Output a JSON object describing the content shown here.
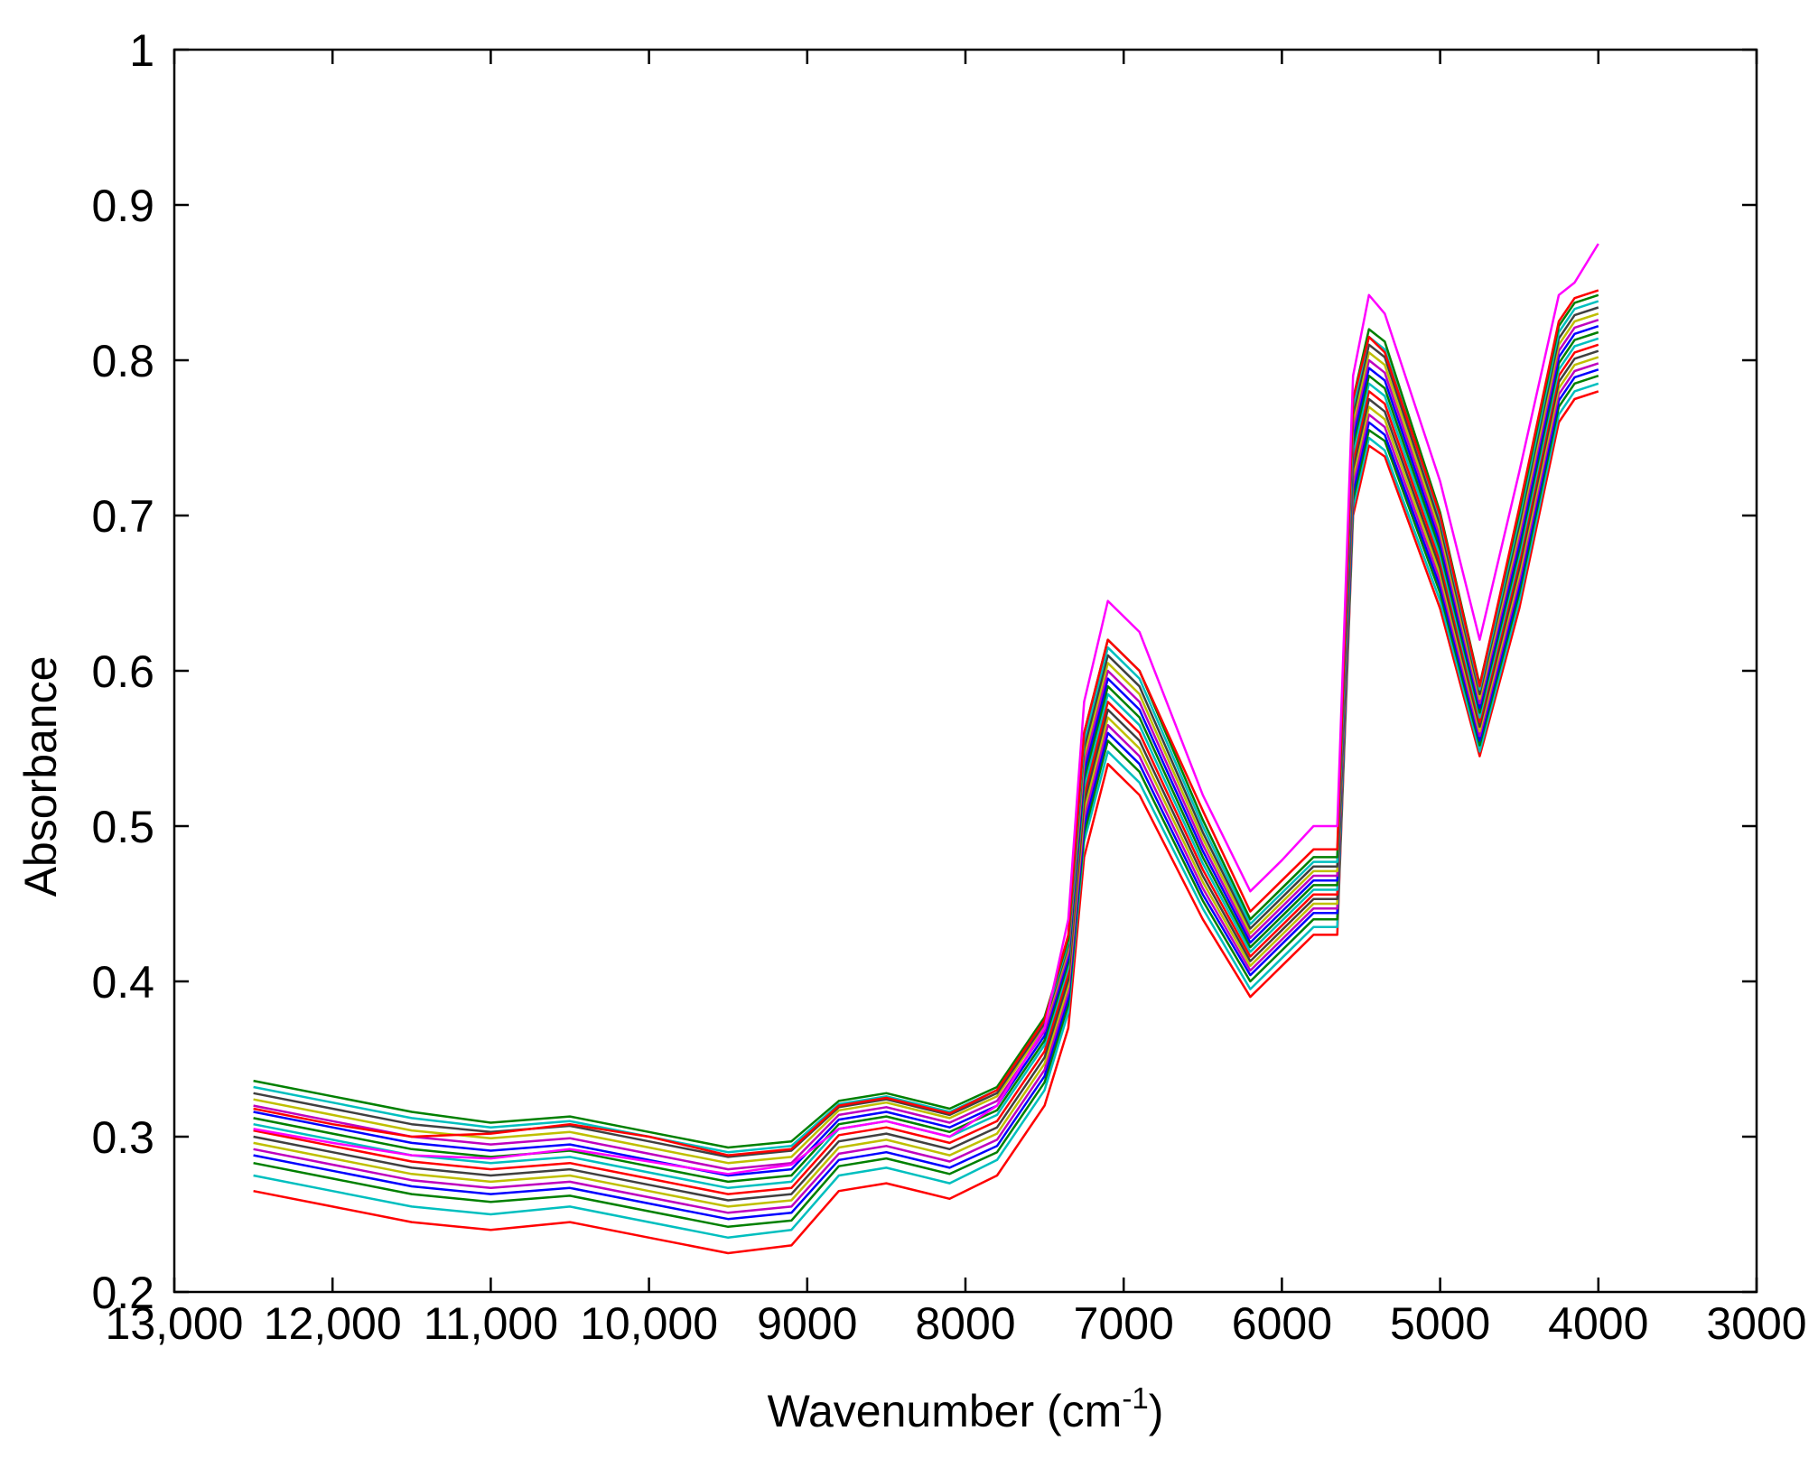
{
  "chart_data": {
    "type": "line",
    "title": "",
    "xlabel": "Wavenumber (cm",
    "xlabel_superscript": "-1",
    "xlabel_close": ")",
    "ylabel": "Absorbance",
    "xlim": [
      13000,
      3000
    ],
    "ylim": [
      0.2,
      1.0
    ],
    "x_reversed": true,
    "grid": false,
    "legend": "none",
    "x_ticks": [
      {
        "value": 13000,
        "label": "13,000"
      },
      {
        "value": 12000,
        "label": "12,000"
      },
      {
        "value": 11000,
        "label": "11,000"
      },
      {
        "value": 10000,
        "label": "10,000"
      },
      {
        "value": 9000,
        "label": "9000"
      },
      {
        "value": 8000,
        "label": "8000"
      },
      {
        "value": 7000,
        "label": "7000"
      },
      {
        "value": 6000,
        "label": "6000"
      },
      {
        "value": 5000,
        "label": "5000"
      },
      {
        "value": 4000,
        "label": "4000"
      },
      {
        "value": 3000,
        "label": "3000"
      }
    ],
    "y_ticks": [
      {
        "value": 0.2,
        "label": "0.2"
      },
      {
        "value": 0.3,
        "label": "0.3"
      },
      {
        "value": 0.4,
        "label": "0.4"
      },
      {
        "value": 0.5,
        "label": "0.5"
      },
      {
        "value": 0.6,
        "label": "0.6"
      },
      {
        "value": 0.7,
        "label": "0.7"
      },
      {
        "value": 0.8,
        "label": "0.8"
      },
      {
        "value": 0.9,
        "label": "0.9"
      },
      {
        "value": 1.0,
        "label": "1"
      }
    ],
    "x": [
      12500,
      12000,
      11500,
      11000,
      10500,
      10000,
      9500,
      9100,
      8800,
      8500,
      8100,
      7800,
      7500,
      7350,
      7250,
      7100,
      6900,
      6500,
      6200,
      6000,
      5800,
      5650,
      5550,
      5450,
      5350,
      5000,
      4750,
      4500,
      4250,
      4150,
      4000
    ],
    "series": [
      {
        "color": "#ff0000",
        "values": [
          0.265,
          0.255,
          0.245,
          0.24,
          0.245,
          0.235,
          0.225,
          0.23,
          0.265,
          0.27,
          0.26,
          0.275,
          0.32,
          0.37,
          0.48,
          0.54,
          0.52,
          0.44,
          0.39,
          0.41,
          0.43,
          0.43,
          0.7,
          0.745,
          0.738,
          0.64,
          0.545,
          0.64,
          0.76,
          0.775,
          0.78
        ]
      },
      {
        "color": "#00bfbf",
        "values": [
          0.275,
          0.265,
          0.255,
          0.25,
          0.255,
          0.245,
          0.235,
          0.24,
          0.275,
          0.28,
          0.27,
          0.285,
          0.33,
          0.38,
          0.49,
          0.548,
          0.528,
          0.447,
          0.395,
          0.415,
          0.435,
          0.435,
          0.705,
          0.75,
          0.742,
          0.645,
          0.548,
          0.645,
          0.765,
          0.78,
          0.785
        ]
      },
      {
        "color": "#008000",
        "values": [
          0.283,
          0.273,
          0.263,
          0.258,
          0.262,
          0.252,
          0.242,
          0.246,
          0.281,
          0.286,
          0.276,
          0.29,
          0.335,
          0.385,
          0.495,
          0.555,
          0.535,
          0.452,
          0.4,
          0.42,
          0.44,
          0.44,
          0.71,
          0.755,
          0.748,
          0.65,
          0.552,
          0.65,
          0.77,
          0.785,
          0.79
        ]
      },
      {
        "color": "#0000ff",
        "values": [
          0.288,
          0.278,
          0.268,
          0.263,
          0.267,
          0.257,
          0.247,
          0.251,
          0.285,
          0.29,
          0.28,
          0.294,
          0.339,
          0.389,
          0.5,
          0.56,
          0.54,
          0.456,
          0.404,
          0.424,
          0.444,
          0.444,
          0.715,
          0.76,
          0.752,
          0.654,
          0.555,
          0.654,
          0.774,
          0.789,
          0.794
        ]
      },
      {
        "color": "#bf00bf",
        "values": [
          0.292,
          0.282,
          0.272,
          0.267,
          0.271,
          0.261,
          0.251,
          0.255,
          0.289,
          0.294,
          0.284,
          0.298,
          0.343,
          0.393,
          0.505,
          0.565,
          0.545,
          0.46,
          0.407,
          0.427,
          0.447,
          0.447,
          0.72,
          0.765,
          0.757,
          0.658,
          0.558,
          0.658,
          0.778,
          0.793,
          0.798
        ]
      },
      {
        "color": "#bfbf00",
        "values": [
          0.296,
          0.286,
          0.276,
          0.271,
          0.275,
          0.265,
          0.255,
          0.259,
          0.293,
          0.298,
          0.288,
          0.302,
          0.347,
          0.397,
          0.51,
          0.57,
          0.55,
          0.464,
          0.41,
          0.43,
          0.45,
          0.45,
          0.725,
          0.77,
          0.762,
          0.662,
          0.561,
          0.662,
          0.782,
          0.797,
          0.802
        ]
      },
      {
        "color": "#404040",
        "values": [
          0.3,
          0.29,
          0.28,
          0.275,
          0.279,
          0.269,
          0.259,
          0.263,
          0.297,
          0.302,
          0.292,
          0.306,
          0.351,
          0.401,
          0.515,
          0.575,
          0.555,
          0.468,
          0.413,
          0.433,
          0.453,
          0.453,
          0.73,
          0.775,
          0.767,
          0.666,
          0.564,
          0.666,
          0.786,
          0.801,
          0.806
        ]
      },
      {
        "color": "#ff0000",
        "values": [
          0.304,
          0.294,
          0.284,
          0.279,
          0.283,
          0.273,
          0.263,
          0.267,
          0.301,
          0.306,
          0.296,
          0.31,
          0.355,
          0.405,
          0.52,
          0.58,
          0.56,
          0.472,
          0.416,
          0.436,
          0.456,
          0.456,
          0.735,
          0.78,
          0.772,
          0.67,
          0.567,
          0.67,
          0.79,
          0.805,
          0.81
        ]
      },
      {
        "color": "#00bfbf",
        "values": [
          0.308,
          0.298,
          0.288,
          0.283,
          0.287,
          0.277,
          0.267,
          0.271,
          0.305,
          0.31,
          0.3,
          0.314,
          0.359,
          0.409,
          0.525,
          0.585,
          0.565,
          0.476,
          0.419,
          0.439,
          0.459,
          0.459,
          0.74,
          0.785,
          0.777,
          0.674,
          0.57,
          0.674,
          0.794,
          0.809,
          0.814
        ]
      },
      {
        "color": "#008000",
        "values": [
          0.312,
          0.302,
          0.292,
          0.287,
          0.291,
          0.281,
          0.271,
          0.275,
          0.308,
          0.313,
          0.303,
          0.317,
          0.362,
          0.412,
          0.53,
          0.59,
          0.57,
          0.48,
          0.422,
          0.442,
          0.462,
          0.462,
          0.745,
          0.79,
          0.782,
          0.678,
          0.573,
          0.678,
          0.798,
          0.813,
          0.818
        ]
      },
      {
        "color": "#0000ff",
        "values": [
          0.316,
          0.306,
          0.296,
          0.291,
          0.295,
          0.285,
          0.275,
          0.279,
          0.311,
          0.316,
          0.306,
          0.32,
          0.365,
          0.415,
          0.535,
          0.595,
          0.575,
          0.484,
          0.425,
          0.445,
          0.465,
          0.465,
          0.75,
          0.795,
          0.787,
          0.682,
          0.576,
          0.682,
          0.802,
          0.817,
          0.822
        ]
      },
      {
        "color": "#bf00bf",
        "values": [
          0.32,
          0.31,
          0.3,
          0.295,
          0.299,
          0.289,
          0.279,
          0.283,
          0.314,
          0.319,
          0.309,
          0.323,
          0.368,
          0.418,
          0.54,
          0.6,
          0.58,
          0.488,
          0.428,
          0.448,
          0.468,
          0.468,
          0.755,
          0.8,
          0.792,
          0.686,
          0.579,
          0.686,
          0.806,
          0.821,
          0.826
        ]
      },
      {
        "color": "#bfbf00",
        "values": [
          0.324,
          0.314,
          0.304,
          0.299,
          0.303,
          0.293,
          0.283,
          0.287,
          0.317,
          0.322,
          0.312,
          0.326,
          0.371,
          0.421,
          0.545,
          0.605,
          0.585,
          0.492,
          0.431,
          0.451,
          0.471,
          0.471,
          0.76,
          0.805,
          0.797,
          0.69,
          0.582,
          0.69,
          0.81,
          0.825,
          0.83
        ]
      },
      {
        "color": "#404040",
        "values": [
          0.328,
          0.318,
          0.308,
          0.303,
          0.307,
          0.297,
          0.287,
          0.291,
          0.319,
          0.324,
          0.314,
          0.328,
          0.373,
          0.423,
          0.55,
          0.61,
          0.59,
          0.496,
          0.434,
          0.454,
          0.474,
          0.474,
          0.765,
          0.81,
          0.802,
          0.694,
          0.585,
          0.694,
          0.814,
          0.829,
          0.834
        ]
      },
      {
        "color": "#00bfbf",
        "values": [
          0.332,
          0.322,
          0.312,
          0.306,
          0.31,
          0.3,
          0.29,
          0.294,
          0.321,
          0.326,
          0.316,
          0.33,
          0.375,
          0.425,
          0.555,
          0.615,
          0.595,
          0.5,
          0.437,
          0.457,
          0.477,
          0.477,
          0.77,
          0.815,
          0.807,
          0.698,
          0.588,
          0.698,
          0.818,
          0.833,
          0.838
        ]
      },
      {
        "color": "#008000",
        "values": [
          0.336,
          0.326,
          0.316,
          0.309,
          0.313,
          0.303,
          0.293,
          0.297,
          0.323,
          0.328,
          0.318,
          0.332,
          0.377,
          0.427,
          0.56,
          0.62,
          0.6,
          0.504,
          0.44,
          0.46,
          0.48,
          0.48,
          0.775,
          0.82,
          0.812,
          0.702,
          0.591,
          0.702,
          0.822,
          0.837,
          0.842
        ]
      },
      {
        "color": "#ff0000",
        "values": [
          0.318,
          0.308,
          0.3,
          0.302,
          0.308,
          0.3,
          0.288,
          0.292,
          0.32,
          0.325,
          0.315,
          0.33,
          0.375,
          0.43,
          0.56,
          0.62,
          0.6,
          0.51,
          0.445,
          0.465,
          0.485,
          0.485,
          0.775,
          0.815,
          0.805,
          0.7,
          0.59,
          0.705,
          0.825,
          0.84,
          0.845
        ]
      },
      {
        "color": "#ff00ff",
        "values": [
          0.305,
          0.296,
          0.288,
          0.286,
          0.292,
          0.284,
          0.276,
          0.282,
          0.305,
          0.31,
          0.3,
          0.32,
          0.37,
          0.44,
          0.58,
          0.645,
          0.625,
          0.52,
          0.458,
          0.478,
          0.5,
          0.5,
          0.79,
          0.842,
          0.83,
          0.722,
          0.62,
          0.728,
          0.842,
          0.85,
          0.875
        ]
      }
    ]
  }
}
